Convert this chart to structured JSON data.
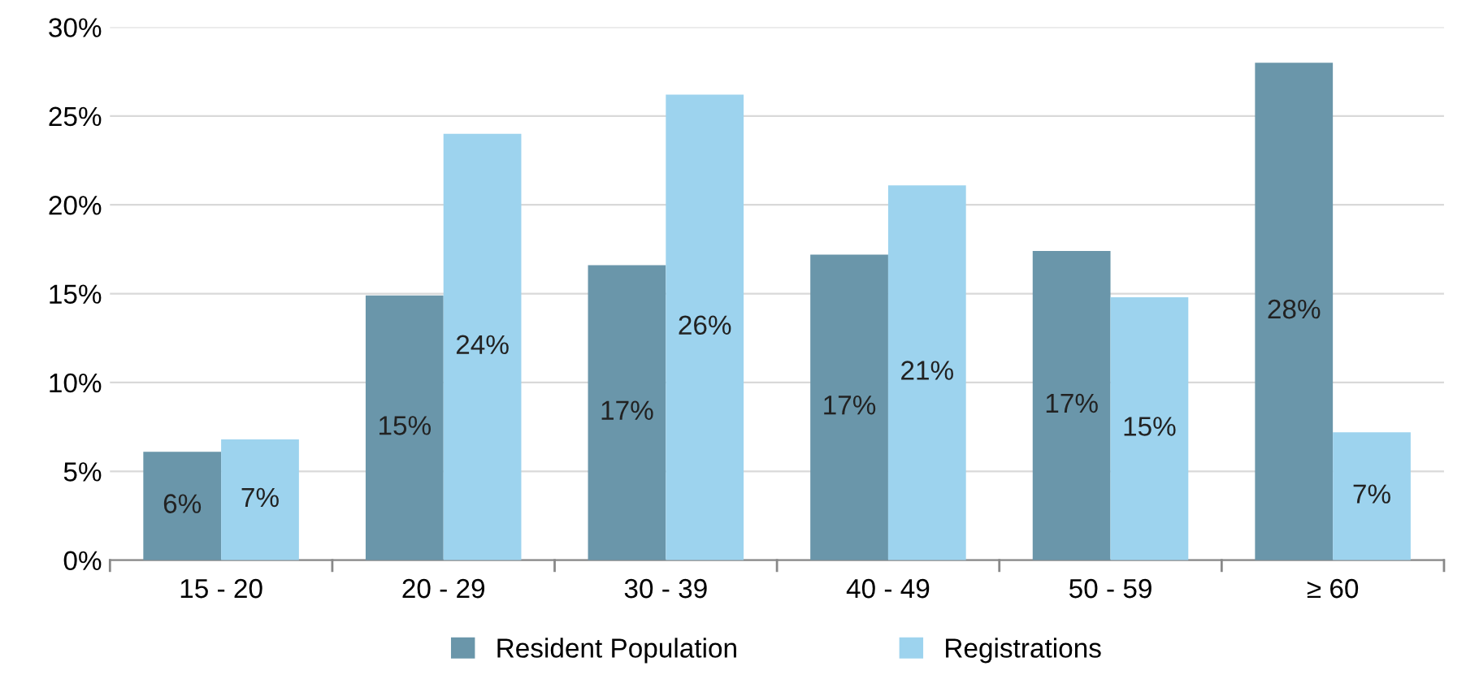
{
  "chart_data": {
    "type": "bar",
    "categories": [
      "15 - 20",
      "20 - 29",
      "30 - 39",
      "40 - 49",
      "50 - 59",
      "≥ 60"
    ],
    "series": [
      {
        "name": "Resident Population",
        "color": "#6a96aa",
        "values": [
          6.1,
          14.9,
          16.6,
          17.2,
          17.4,
          28.0
        ],
        "value_labels": [
          "6%",
          "15%",
          "17%",
          "17%",
          "17%",
          "28%"
        ]
      },
      {
        "name": "Registrations",
        "color": "#9dd3ee",
        "values": [
          6.8,
          24.0,
          26.2,
          21.1,
          14.8,
          7.2
        ],
        "value_labels": [
          "7%",
          "24%",
          "26%",
          "21%",
          "15%",
          "7%"
        ]
      }
    ],
    "ylim": [
      0,
      30
    ],
    "yticks": [
      {
        "value": 0,
        "label": "0%"
      },
      {
        "value": 5,
        "label": "5%"
      },
      {
        "value": 10,
        "label": "10%"
      },
      {
        "value": 15,
        "label": "15%"
      },
      {
        "value": 20,
        "label": "20%"
      },
      {
        "value": 25,
        "label": "25%"
      },
      {
        "value": 30,
        "label": "30%"
      }
    ],
    "grid": "y",
    "legend": "bottom"
  }
}
